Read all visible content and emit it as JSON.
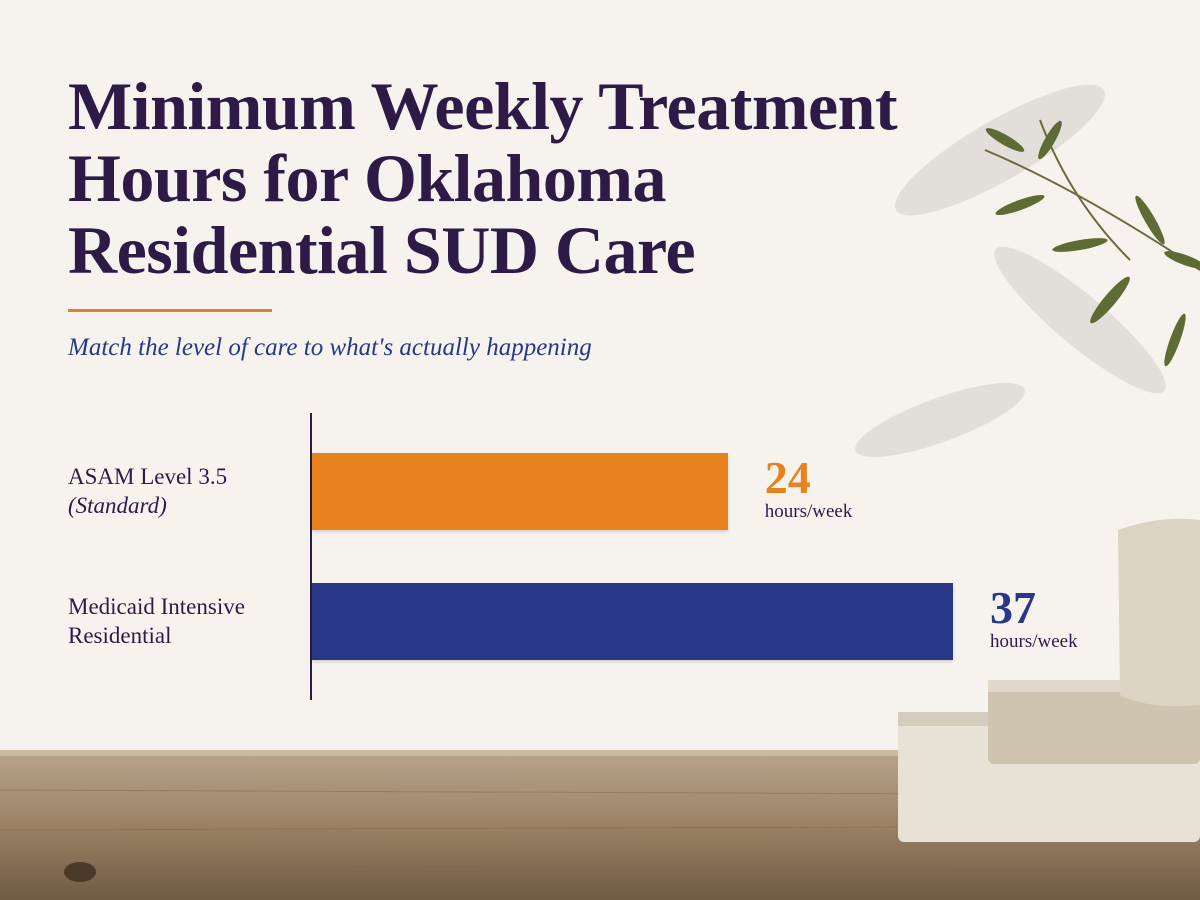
{
  "chart_data": {
    "type": "bar",
    "orientation": "horizontal",
    "title": "Minimum Weekly Treatment Hours for Oklahoma Residential SUD Care",
    "subtitle": "Match the level of care to what's actually happening",
    "categories": [
      "ASAM Level 3.5",
      "Medicaid Intensive Residential"
    ],
    "category_notes": [
      "(Standard)",
      null
    ],
    "values": [
      24,
      37
    ],
    "colors": [
      "#e8821f",
      "#283887"
    ],
    "unit": "hours/week"
  }
}
